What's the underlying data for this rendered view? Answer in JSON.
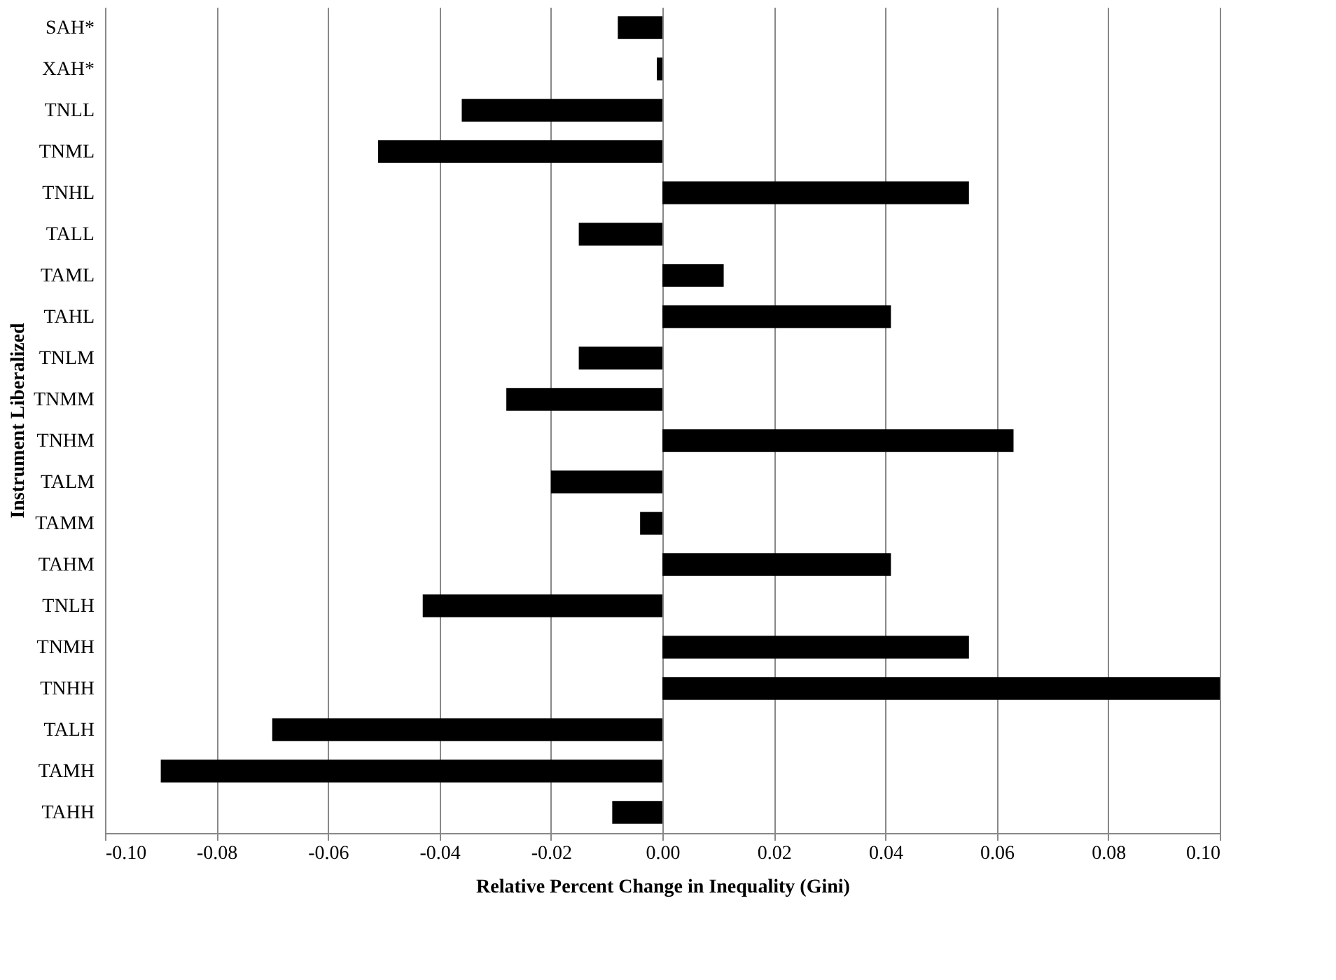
{
  "chart_data": {
    "type": "bar",
    "orientation": "horizontal",
    "xlabel": "Relative Percent Change in Inequality (Gini)",
    "ylabel": "Instrument Liberalized",
    "categories": [
      "SAH*",
      "XAH*",
      "TNLL",
      "TNML",
      "TNHL",
      "TALL",
      "TAML",
      "TAHL",
      "TNLM",
      "TNMM",
      "TNHM",
      "TALM",
      "TAMM",
      "TAHM",
      "TNLH",
      "TNMH",
      "TNHH",
      "TALH",
      "TAMH",
      "TAHH"
    ],
    "values": [
      -0.008,
      -0.001,
      -0.036,
      -0.051,
      0.055,
      -0.015,
      0.011,
      0.041,
      -0.015,
      -0.028,
      0.063,
      -0.02,
      -0.004,
      0.041,
      -0.043,
      0.055,
      0.1,
      -0.07,
      -0.09,
      -0.009
    ],
    "color": "#000000",
    "xlim": [
      -0.1,
      0.1
    ],
    "xticks": [
      {
        "value": -0.1,
        "label": "-0.10"
      },
      {
        "value": -0.08,
        "label": "-0.08"
      },
      {
        "value": -0.06,
        "label": "-0.06"
      },
      {
        "value": -0.04,
        "label": "-0.04"
      },
      {
        "value": -0.02,
        "label": "-0.02"
      },
      {
        "value": 0,
        "label": "0.00"
      },
      {
        "value": 0.02,
        "label": "0.02"
      },
      {
        "value": 0.04,
        "label": "0.04"
      },
      {
        "value": 0.06,
        "label": "0.06"
      },
      {
        "value": 0.08,
        "label": "0.08"
      },
      {
        "value": 0.1,
        "label": "0.10"
      }
    ],
    "grid": "x"
  }
}
